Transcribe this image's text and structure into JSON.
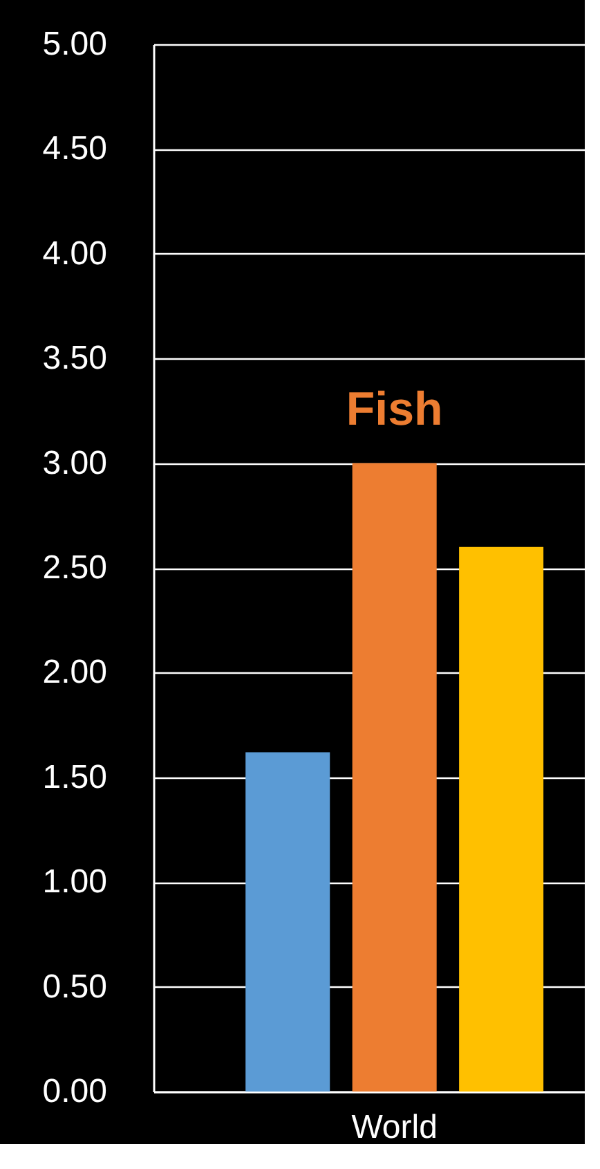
{
  "chart_data": {
    "type": "bar",
    "categories": [
      null,
      "World",
      null
    ],
    "values": [
      1.62,
      3.0,
      2.6
    ],
    "colors": [
      "#5b9bd5",
      "#ed7d31",
      "#ffc000"
    ],
    "annotations": [
      {
        "text": "Fish",
        "x": "World",
        "y": 3.0
      }
    ],
    "ylim": [
      0,
      5
    ],
    "yticks": [
      {
        "value": 0,
        "label": "0.00"
      },
      {
        "value": 0.5,
        "label": "0.50"
      },
      {
        "value": 1,
        "label": "1.00"
      },
      {
        "value": 1.5,
        "label": "1.50"
      },
      {
        "value": 2,
        "label": "2.00"
      },
      {
        "value": 2.5,
        "label": "2.50"
      },
      {
        "value": 3,
        "label": "3.00"
      },
      {
        "value": 3.5,
        "label": "3.50"
      },
      {
        "value": 4,
        "label": "4.00"
      },
      {
        "value": 4.5,
        "label": "4.50"
      },
      {
        "value": 5,
        "label": "5.00"
      }
    ],
    "grid": "y"
  }
}
